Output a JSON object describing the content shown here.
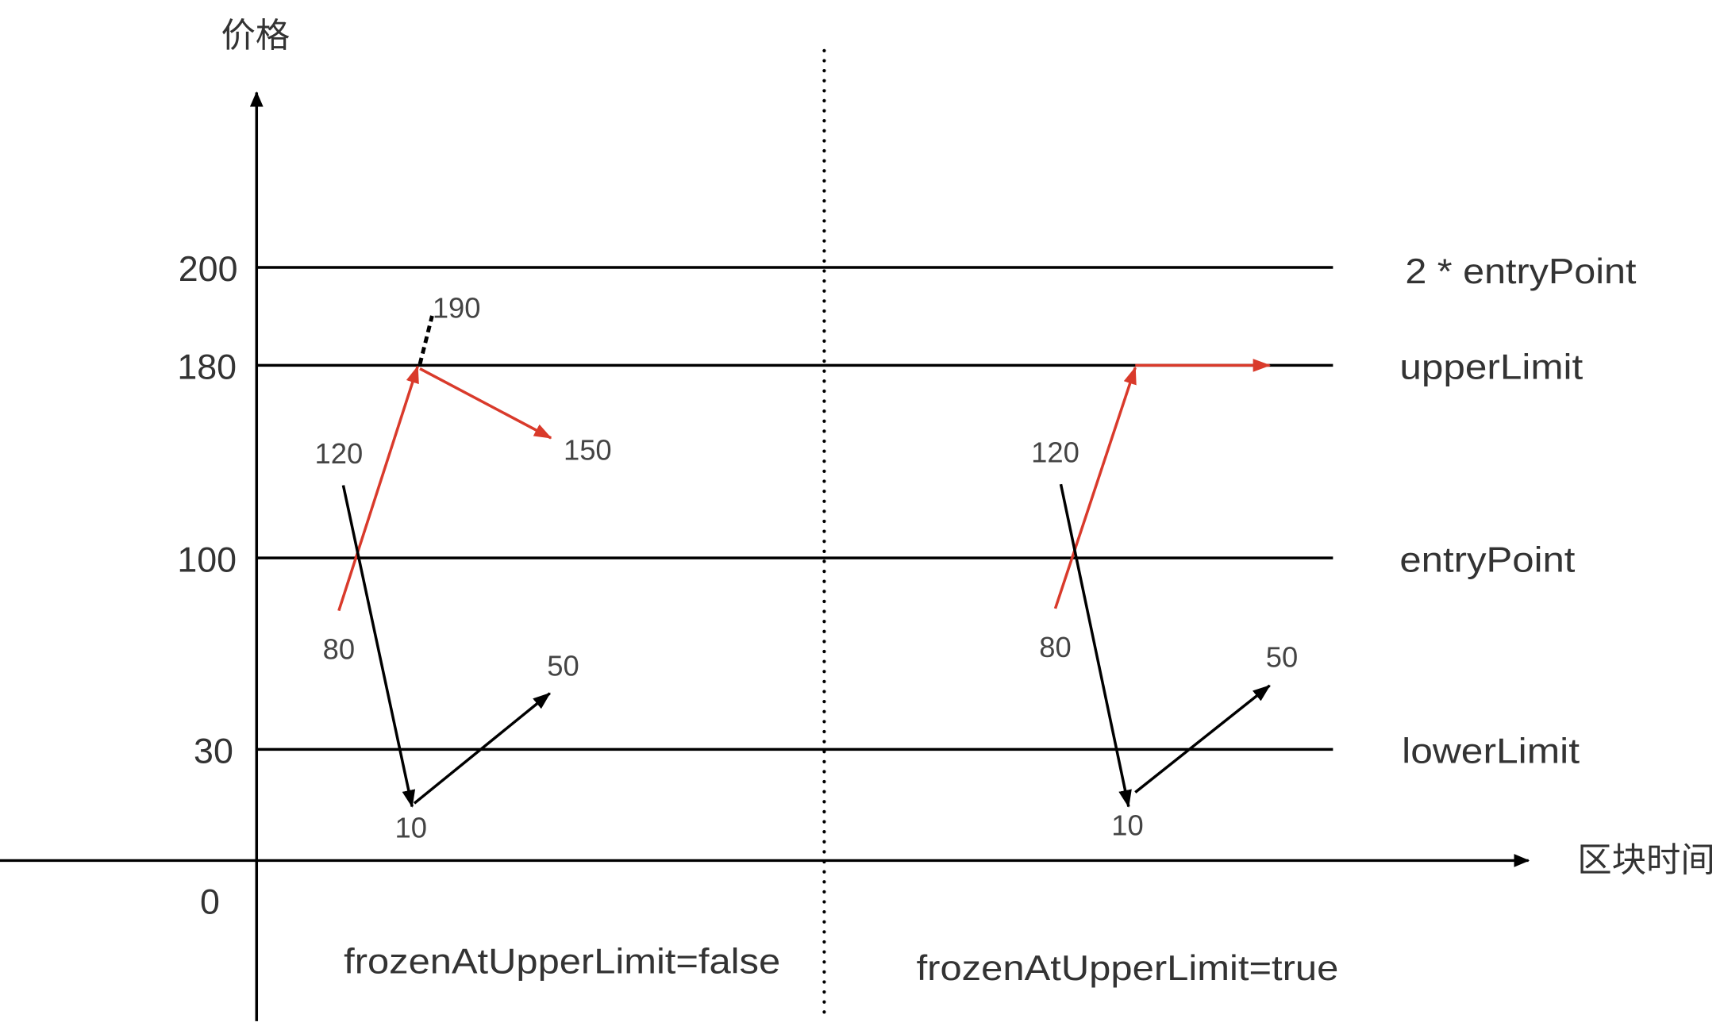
{
  "axes": {
    "y_label": "价格",
    "x_label": "区块时间",
    "origin_tick": "0"
  },
  "levels": [
    {
      "tick": "200",
      "label": "2 * entryPoint"
    },
    {
      "tick": "180",
      "label": "upperLimit"
    },
    {
      "tick": "100",
      "label": "entryPoint"
    },
    {
      "tick": "30",
      "label": "lowerLimit"
    }
  ],
  "panels": [
    {
      "caption": "frozenAtUpperLimit=false",
      "points": {
        "p190": "190",
        "p120": "120",
        "p150": "150",
        "p80": "80",
        "p50": "50",
        "p10": "10"
      }
    },
    {
      "caption": "frozenAtUpperLimit=true",
      "points": {
        "p120": "120",
        "p80": "80",
        "p50": "50",
        "p10": "10"
      }
    }
  ],
  "colors": {
    "rising_path": "#d93a2b",
    "falling_path": "#000000"
  }
}
